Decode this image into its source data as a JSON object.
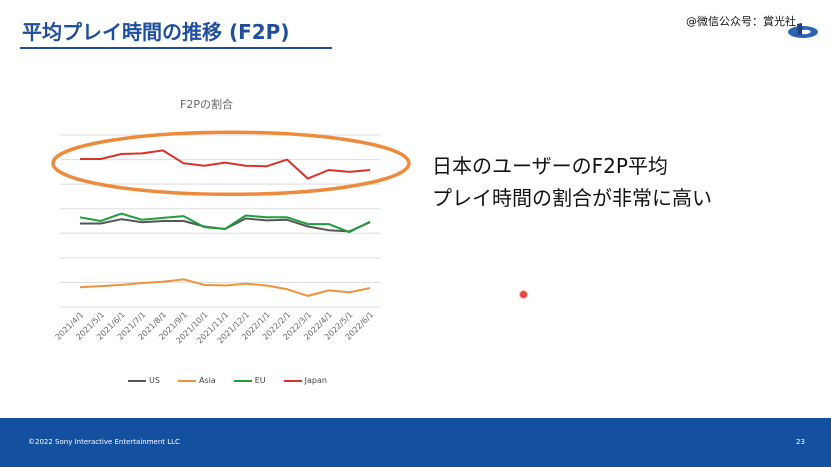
{
  "slide": {
    "title": "平均プレイ時間の推移 (F2P)",
    "watermark": "@微信公众号：賞光社",
    "message_line1": "日本のユーザーのF2P平均",
    "message_line2": "プレイ時間の割合が非常に高い",
    "footer": "©2022 Sony Interactive Entertainment LLC",
    "page_number": "23"
  },
  "colors": {
    "title": "#1f4e9c",
    "footer": "#1450a0",
    "highlight_ellipse": "#ee8a3c"
  },
  "chart_data": {
    "type": "line",
    "title": "F2Pの割合",
    "x": [
      "2021/4/1",
      "2021/5/1",
      "2021/6/1",
      "2021/7/1",
      "2021/8/1",
      "2021/9/1",
      "2021/10/1",
      "2021/11/1",
      "2021/12/1",
      "2022/1/1",
      "2022/2/1",
      "2022/3/1",
      "2022/4/1",
      "2022/5/1",
      "2022/6/1"
    ],
    "series": [
      {
        "name": "US",
        "color": "#555555",
        "values": [
          3.8,
          3.8,
          4.15,
          3.9,
          4.0,
          4.0,
          3.55,
          3.35,
          4.2,
          4.05,
          4.1,
          3.55,
          3.25,
          3.15,
          3.9
        ]
      },
      {
        "name": "Asia",
        "color": "#f0923a",
        "values": [
          -1.4,
          -1.3,
          -1.2,
          -1.05,
          -0.95,
          -0.75,
          -1.2,
          -1.25,
          -1.1,
          -1.25,
          -1.55,
          -2.1,
          -1.65,
          -1.8,
          -1.45
        ]
      },
      {
        "name": "EU",
        "color": "#1f9e3c",
        "values": [
          4.3,
          4.0,
          4.6,
          4.1,
          4.25,
          4.4,
          3.5,
          3.35,
          4.45,
          4.3,
          4.3,
          3.75,
          3.75,
          3.1,
          3.95
        ]
      },
      {
        "name": "Japan",
        "color": "#d9312b",
        "values": [
          9.05,
          9.05,
          9.45,
          9.5,
          9.75,
          8.7,
          8.5,
          8.75,
          8.5,
          8.45,
          9.0,
          7.45,
          8.15,
          8.0,
          8.15
        ]
      }
    ],
    "ylim": [
      -3,
      11
    ],
    "grid": true,
    "legend_position": "bottom",
    "y_tick_labels_visible": false,
    "annotation": "orange ellipse highlighting the Japan series"
  }
}
